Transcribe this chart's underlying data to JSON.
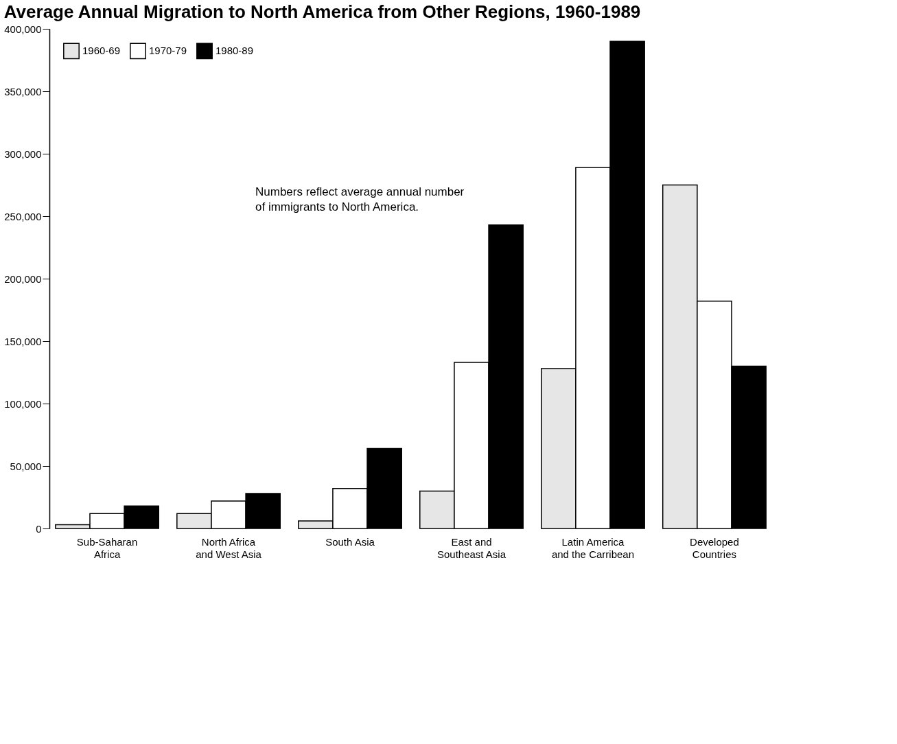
{
  "chart_data": {
    "type": "bar",
    "title": "Average Annual Migration to North America from Other Regions, 1960-1989",
    "categories": [
      "Sub-Saharan Africa",
      "North Africa and West Asia",
      "South Asia",
      "East and Southeast Asia",
      "Latin America and the Carribean",
      "Developed Countries"
    ],
    "series": [
      {
        "name": "1960-69",
        "color": "#e6e6e6",
        "values": [
          3000,
          12000,
          6000,
          30000,
          128000,
          275000
        ]
      },
      {
        "name": "1970-79",
        "color": "#ffffff",
        "values": [
          12000,
          22000,
          32000,
          133000,
          289000,
          182000
        ]
      },
      {
        "name": "1980-89",
        "color": "#000000",
        "values": [
          18000,
          28000,
          64000,
          243000,
          390000,
          130000
        ]
      }
    ],
    "ylim": [
      0,
      400000
    ],
    "yticks": [
      0,
      {
        "value": 50000,
        "label": "50,000"
      },
      {
        "value": 100000,
        "label": "100,000"
      },
      {
        "value": 150000,
        "label": "150,000"
      },
      {
        "value": 200000,
        "label": "200,000"
      },
      {
        "value": 250000,
        "label": "250,000"
      },
      {
        "value": 300000,
        "label": "300,000"
      },
      {
        "value": 350000,
        "label": "350,000"
      },
      {
        "value": 400000,
        "label": "400,000"
      }
    ],
    "grid": false,
    "legend": "top left",
    "annotations": [
      "Numbers reflect average annual number of immigrants to North America."
    ]
  }
}
